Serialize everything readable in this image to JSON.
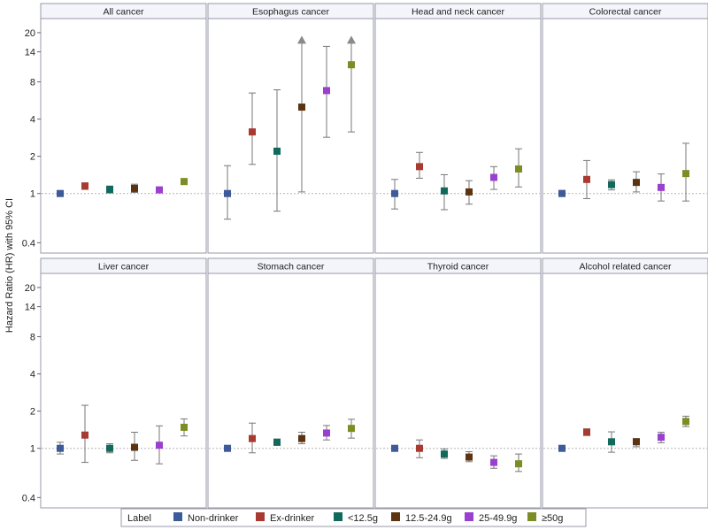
{
  "chart_data": {
    "type": "scatter",
    "subtype": "forest-plot-log-scale",
    "ylabel": "Hazard Ratio (HR) with 95% CI",
    "y_scale": "log",
    "ylim": [
      0.33,
      26
    ],
    "y_ticks": [
      0.4,
      1,
      2,
      4,
      8,
      14,
      20
    ],
    "reference_line": 1,
    "legend": {
      "title": "Label",
      "position": "bottom",
      "entries": [
        {
          "name": "Non-drinker",
          "color": "#3d5a99"
        },
        {
          "name": "Ex-drinker",
          "color": "#a83a32"
        },
        {
          "name": "<12.5g",
          "color": "#10695a"
        },
        {
          "name": "12.5-24.9g",
          "color": "#5b3310"
        },
        {
          "name": "25-49.9g",
          "color": "#9a3fd0"
        },
        {
          "name": "≥50g",
          "color": "#7d8c23"
        }
      ]
    },
    "panels": [
      {
        "title": "All cancer",
        "hr": [
          1.0,
          1.15,
          1.08,
          1.1,
          1.07,
          1.25
        ],
        "lower": [
          1.0,
          1.08,
          1.01,
          1.02,
          1.04,
          1.19
        ],
        "upper": [
          1.0,
          1.22,
          1.15,
          1.19,
          1.1,
          1.3
        ]
      },
      {
        "title": "Esophagus cancer",
        "hr": [
          1.0,
          3.15,
          2.2,
          5.0,
          6.8,
          11.0
        ],
        "lower": [
          0.62,
          1.72,
          0.72,
          1.03,
          2.85,
          3.15
        ],
        "upper": [
          1.68,
          6.5,
          6.9,
          18.0,
          15.5,
          18.0
        ],
        "upper_truncated": [
          false,
          false,
          false,
          true,
          false,
          true
        ]
      },
      {
        "title": "Head and neck cancer",
        "hr": [
          1.0,
          1.65,
          1.05,
          1.03,
          1.35,
          1.58
        ],
        "lower": [
          0.75,
          1.33,
          0.74,
          0.82,
          1.08,
          1.13
        ],
        "upper": [
          1.3,
          2.15,
          1.42,
          1.27,
          1.65,
          2.3
        ]
      },
      {
        "title": "Colorectal cancer",
        "hr": [
          1.0,
          1.3,
          1.18,
          1.23,
          1.12,
          1.45
        ],
        "lower": [
          0.95,
          0.91,
          1.07,
          1.03,
          0.87,
          0.87
        ],
        "upper": [
          1.06,
          1.85,
          1.29,
          1.5,
          1.44,
          2.55
        ]
      },
      {
        "title": "Liver cancer",
        "hr": [
          1.0,
          1.28,
          1.0,
          1.02,
          1.06,
          1.48
        ],
        "lower": [
          0.9,
          0.77,
          0.92,
          0.8,
          0.75,
          1.26
        ],
        "upper": [
          1.12,
          2.23,
          1.09,
          1.35,
          1.52,
          1.73
        ]
      },
      {
        "title": "Stomach cancer",
        "hr": [
          1.0,
          1.2,
          1.12,
          1.2,
          1.33,
          1.45
        ],
        "lower": [
          0.95,
          0.92,
          1.06,
          1.09,
          1.17,
          1.21
        ],
        "upper": [
          1.05,
          1.6,
          1.19,
          1.35,
          1.53,
          1.72
        ]
      },
      {
        "title": "Thyroid cancer",
        "hr": [
          1.0,
          1.0,
          0.9,
          0.85,
          0.77,
          0.75
        ],
        "lower": [
          0.96,
          0.84,
          0.83,
          0.78,
          0.69,
          0.65
        ],
        "upper": [
          1.04,
          1.17,
          0.99,
          0.94,
          0.87,
          0.9
        ]
      },
      {
        "title": "Alcohol related cancer",
        "hr": [
          1.0,
          1.35,
          1.13,
          1.13,
          1.23,
          1.65
        ],
        "lower": [
          1.0,
          1.27,
          0.93,
          1.03,
          1.11,
          1.5
        ],
        "upper": [
          1.0,
          1.44,
          1.36,
          1.2,
          1.35,
          1.82
        ]
      }
    ]
  }
}
